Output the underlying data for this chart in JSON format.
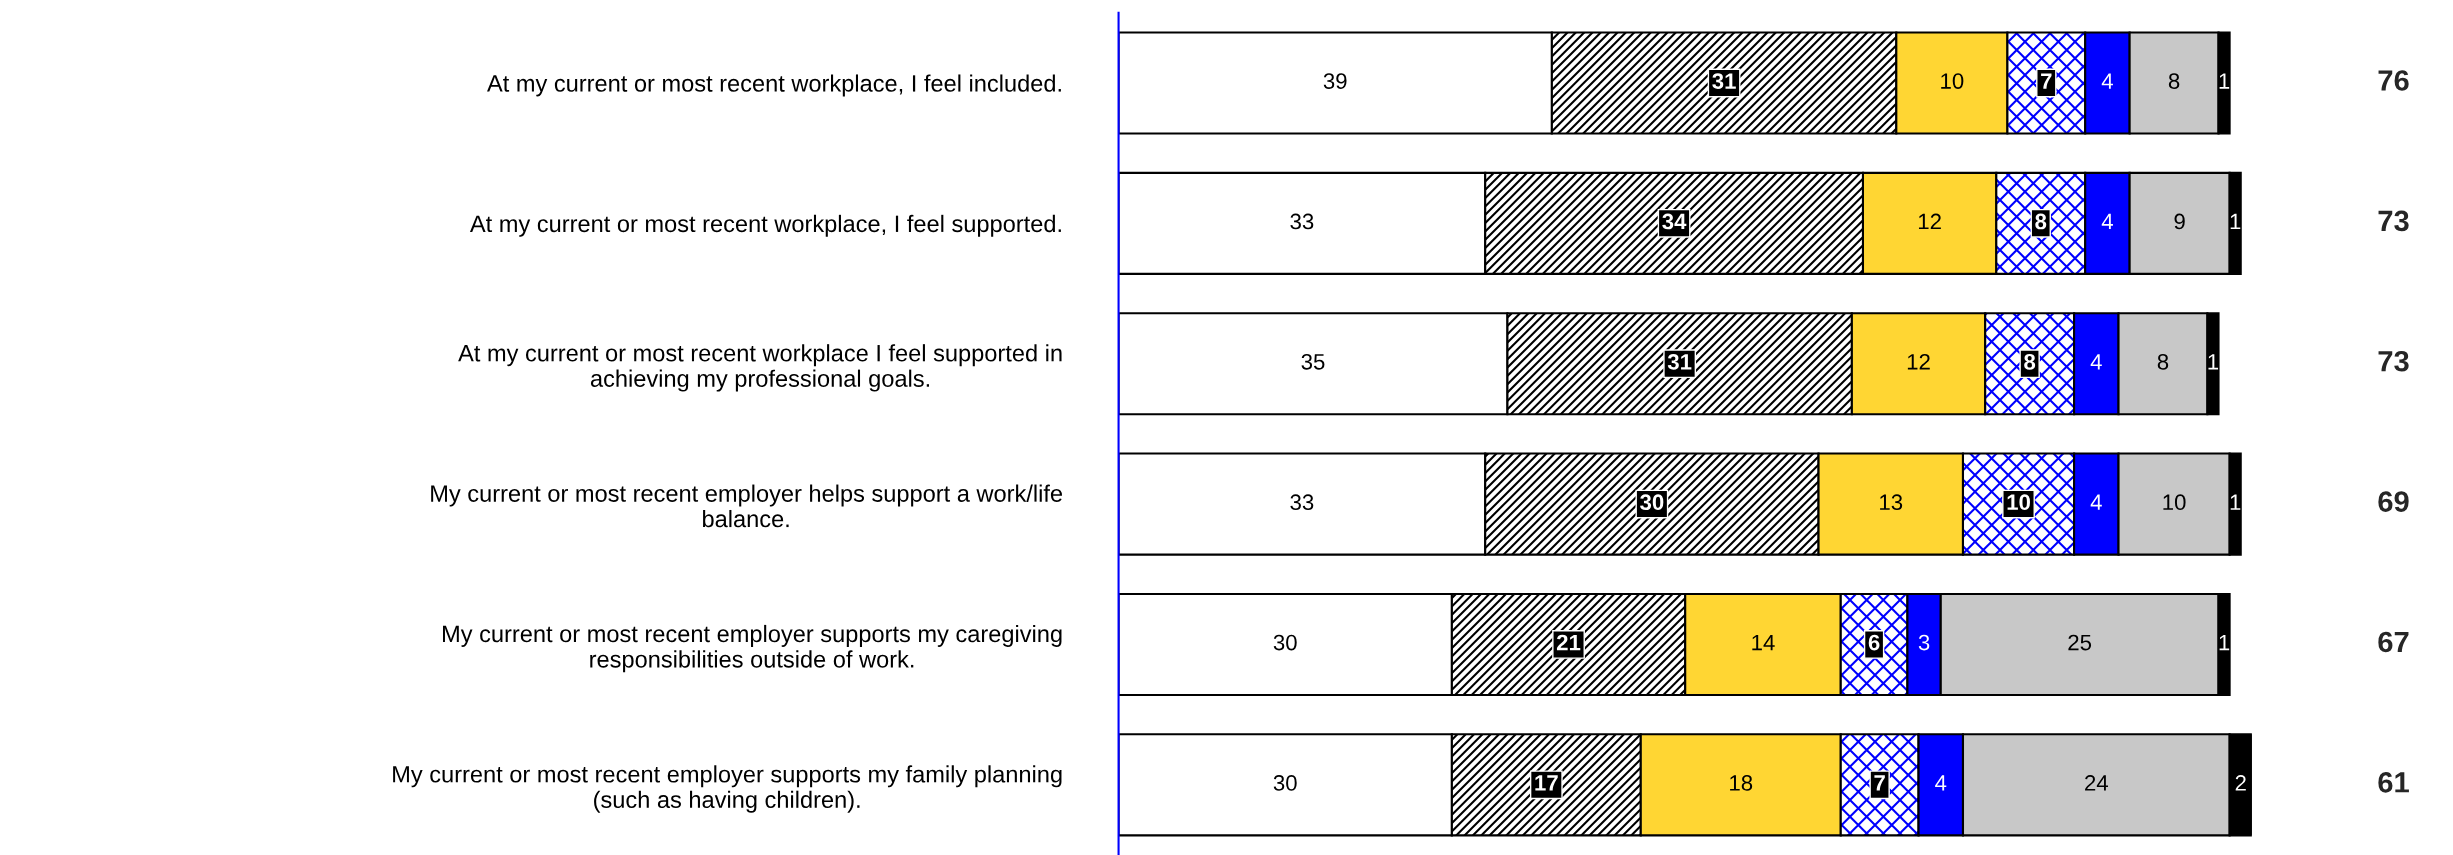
{
  "chart_data": {
    "type": "bar",
    "orientation": "horizontal",
    "stacked": true,
    "data_labels": true,
    "grid": false,
    "legend": false,
    "categories": [
      "At my current or most recent workplace, I feel included.",
      "At my current or most recent workplace, I feel supported.",
      "At my current or most recent workplace I feel supported in\nachieving my professional goals.",
      "My current or most recent employer helps support a work/life\nbalance.",
      "My current or most recent employer supports my caregiving\nresponsibilities outside of work.",
      "My current or most recent employer supports my family planning\n(such as having children)."
    ],
    "series": [
      {
        "color": "#ffffff",
        "values": [
          39,
          33,
          35,
          33,
          30,
          30
        ]
      },
      {
        "color": "#000000",
        "values": [
          31,
          34,
          31,
          30,
          21,
          17
        ]
      },
      {
        "color": "#ffd633",
        "values": [
          10,
          12,
          12,
          13,
          14,
          18
        ]
      },
      {
        "color": "#0000ff",
        "values": [
          7,
          8,
          8,
          10,
          6,
          7
        ]
      },
      {
        "color": "#0000ff",
        "values": [
          4,
          4,
          4,
          4,
          3,
          4
        ]
      },
      {
        "color": "#c8c8c8",
        "values": [
          8,
          9,
          8,
          10,
          25,
          24
        ]
      },
      {
        "color": "#000000",
        "values": [
          1,
          1,
          1,
          1,
          1,
          2
        ]
      }
    ],
    "annotations": [
      "76",
      "73",
      "73",
      "69",
      "67",
      "61"
    ]
  }
}
